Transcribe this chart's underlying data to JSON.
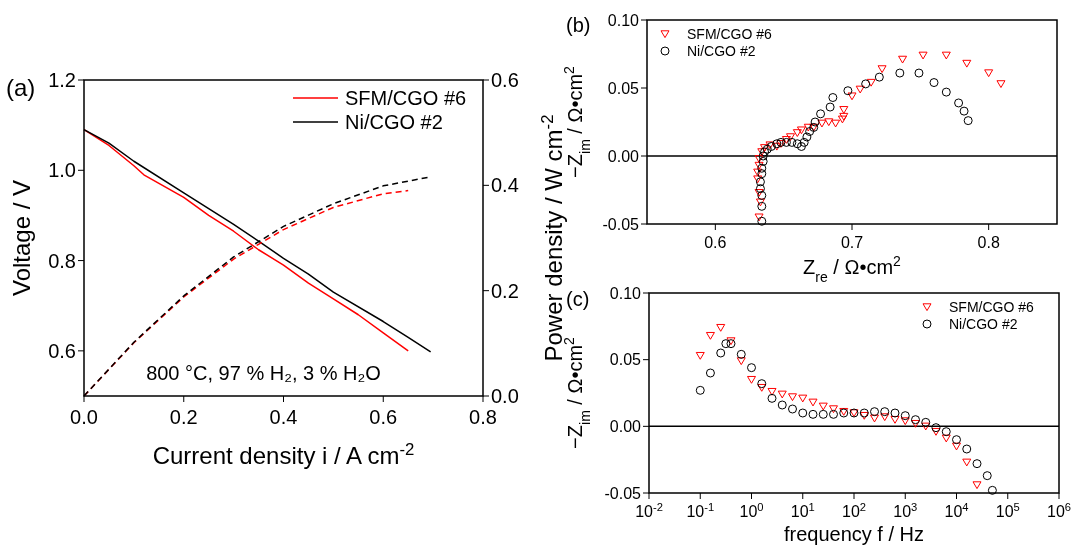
{
  "chart_data": [
    {
      "type": "line",
      "title": "(a)",
      "xlabel": "Current density i / A cm$^{-2}$",
      "ylabel": "Voltage / V",
      "y2label": "Power density / W cm$^{-2}$",
      "xlim": [
        0,
        0.8
      ],
      "ylim": [
        0.5,
        1.2
      ],
      "y2lim": [
        0,
        0.6
      ],
      "xticks": [
        {
          "value": 0,
          "label": "0.0"
        },
        0.2,
        0.4,
        0.6,
        0.8
      ],
      "yticks": [
        0.6,
        0.8,
        {
          "value": 1,
          "label": "1.0"
        },
        1.2
      ],
      "y2ticks": [
        {
          "value": 0,
          "label": "0.0"
        },
        0.2,
        0.4,
        0.6
      ],
      "legend": "top right",
      "annotations": [
        "800 °C, 97 % H₂, 3 % H₂O"
      ],
      "series": [
        {
          "name": "SFM/CGO #6",
          "color": "#ff0000",
          "line_style": "solid",
          "x": [
            0,
            0.05,
            0.1,
            0.12,
            0.2,
            0.25,
            0.3,
            0.35,
            0.4,
            0.45,
            0.5,
            0.55,
            0.6,
            0.65
          ],
          "values": [
            1.09,
            1.055,
            1.01,
            0.99,
            0.94,
            0.9,
            0.865,
            0.824,
            0.79,
            0.75,
            0.715,
            0.68,
            0.64,
            0.6
          ]
        },
        {
          "name": "Ni/CGO #2",
          "color": "#000000",
          "line_style": "solid",
          "x": [
            0,
            0.05,
            0.1,
            0.2,
            0.3,
            0.35,
            0.4,
            0.45,
            0.5,
            0.6,
            0.65,
            0.695
          ],
          "values": [
            1.09,
            1.06,
            1.02,
            0.95,
            0.88,
            0.843,
            0.805,
            0.77,
            0.73,
            0.665,
            0.63,
            0.598
          ]
        },
        {
          "color": "#ff0000",
          "line_style": "dashed",
          "axis": "y2",
          "x": [
            0,
            0.1,
            0.2,
            0.3,
            0.35,
            0.4,
            0.5,
            0.6,
            0.65
          ],
          "values": [
            0,
            0.101,
            0.188,
            0.26,
            0.288,
            0.316,
            0.358,
            0.384,
            0.39
          ]
        },
        {
          "color": "#000000",
          "line_style": "dashed",
          "axis": "y2",
          "x": [
            0,
            0.1,
            0.2,
            0.3,
            0.4,
            0.5,
            0.6,
            0.695
          ],
          "values": [
            0,
            0.102,
            0.19,
            0.264,
            0.322,
            0.365,
            0.399,
            0.416
          ]
        }
      ]
    },
    {
      "type": "scatter",
      "title": "(b)",
      "xlabel": "Z$_{re}$ / Ω•cm$^{2}$",
      "ylabel": "−Z$_{im}$ / Ω•cm$^{2}$",
      "xlim": [
        0.55,
        0.85
      ],
      "ylim": [
        -0.05,
        0.1
      ],
      "xticks": [
        0.6,
        0.7,
        0.8
      ],
      "yticks": [
        -0.05,
        {
          "value": 0,
          "label": "0.00"
        },
        0.05,
        {
          "value": 0.1,
          "label": "0.10"
        }
      ],
      "legend": "top left",
      "ref_lines": [
        {
          "axis": "y",
          "value": 0
        }
      ],
      "series": [
        {
          "name": "SFM/CGO #6",
          "color": "#ff0000",
          "marker": "triangle",
          "x": [
            0.632,
            0.633,
            0.632,
            0.631,
            0.631,
            0.632,
            0.632,
            0.634,
            0.636,
            0.64,
            0.645,
            0.648,
            0.652,
            0.655,
            0.66,
            0.663,
            0.668,
            0.672,
            0.678,
            0.683,
            0.688,
            0.693,
            0.694,
            0.694,
            0.7,
            0.706,
            0.714,
            0.722,
            0.737,
            0.752,
            0.769,
            0.784,
            0.8,
            0.809
          ],
          "values": [
            -0.045,
            -0.034,
            -0.027,
            -0.017,
            -0.012,
            -0.007,
            -0.002,
            0.003,
            0.006,
            0.008,
            0.007,
            0.009,
            0.012,
            0.014,
            0.017,
            0.019,
            0.021,
            0.021,
            0.024,
            0.025,
            0.024,
            0.027,
            0.029,
            0.034,
            0.044,
            0.049,
            0.054,
            0.064,
            0.071,
            0.074,
            0.074,
            0.068,
            0.061,
            0.053
          ]
        },
        {
          "name": "Ni/CGO #2",
          "color": "#000000",
          "marker": "circle",
          "x": [
            0.634,
            0.634,
            0.634,
            0.633,
            0.633,
            0.634,
            0.634,
            0.635,
            0.635,
            0.636,
            0.638,
            0.641,
            0.645,
            0.648,
            0.652,
            0.656,
            0.66,
            0.663,
            0.665,
            0.667,
            0.669,
            0.672,
            0.673,
            0.677,
            0.684,
            0.686,
            0.697,
            0.71,
            0.72,
            0.735,
            0.749,
            0.76,
            0.769,
            0.778,
            0.782,
            0.785
          ],
          "values": [
            -0.048,
            -0.037,
            -0.029,
            -0.024,
            -0.019,
            -0.013,
            -0.009,
            -0.004,
            0,
            0.003,
            0.005,
            0.007,
            0.009,
            0.01,
            0.01,
            0.01,
            0.009,
            0.007,
            0.01,
            0.014,
            0.018,
            0.021,
            0.025,
            0.031,
            0.036,
            0.043,
            0.048,
            0.053,
            0.058,
            0.061,
            0.061,
            0.054,
            0.047,
            0.039,
            0.033,
            0.026
          ]
        }
      ]
    },
    {
      "type": "scatter",
      "title": "(c)",
      "xlabel": "frequency f / Hz",
      "ylabel": "−Z$_{im}$ / Ω•cm$^{2}$",
      "log": "x",
      "xlim": [
        0.01,
        1000000
      ],
      "ylim": [
        -0.05,
        0.1
      ],
      "xticks": [
        {
          "value": 0.01,
          "label": "10$^{-2}$"
        },
        {
          "value": 0.1,
          "label": "10$^{-1}$"
        },
        {
          "value": 1,
          "label": "10$^{0}$"
        },
        {
          "value": 10,
          "label": "10$^{1}$"
        },
        {
          "value": 100,
          "label": "10$^{2}$"
        },
        {
          "value": 1000,
          "label": "10$^{3}$"
        },
        {
          "value": 10000,
          "label": "10$^{4}$"
        },
        {
          "value": 100000,
          "label": "10$^{5}$"
        },
        {
          "value": 1000000,
          "label": "10$^{6}$"
        }
      ],
      "yticks": [
        -0.05,
        {
          "value": 0,
          "label": "0.00"
        },
        0.05,
        {
          "value": 0.1,
          "label": "0.10"
        }
      ],
      "legend": "top right",
      "ref_lines": [
        {
          "axis": "y",
          "value": 0
        }
      ],
      "series": [
        {
          "name": "SFM/CGO #6",
          "color": "#ff0000",
          "marker": "triangle",
          "x": [
            0.1,
            0.158,
            0.251,
            0.398,
            0.631,
            1,
            1.585,
            2.512,
            3.981,
            6.31,
            10,
            15.85,
            25.12,
            39.81,
            63.1,
            100,
            158.5,
            251.2,
            398.1,
            631,
            1000,
            1585,
            2512,
            3981,
            6310,
            10000,
            15850,
            25120
          ],
          "values": [
            0.053,
            0.068,
            0.074,
            0.064,
            0.049,
            0.035,
            0.029,
            0.026,
            0.024,
            0.022,
            0.021,
            0.018,
            0.015,
            0.013,
            0.011,
            0.01,
            0.008,
            0.006,
            0.007,
            0.005,
            0.004,
            0.002,
            0,
            -0.004,
            -0.009,
            -0.015,
            -0.027,
            -0.044
          ]
        },
        {
          "name": "Ni/CGO #2",
          "color": "#000000",
          "marker": "circle",
          "x": [
            0.1,
            0.158,
            0.251,
            0.316,
            0.398,
            0.631,
            1,
            1.585,
            2.512,
            3.981,
            6.31,
            10,
            15.85,
            25.12,
            39.81,
            63.1,
            100,
            158.5,
            251.2,
            398.1,
            631,
            1000,
            1585,
            2512,
            3981,
            6310,
            10000,
            15850,
            25120,
            39810,
            50120
          ],
          "values": [
            0.027,
            0.04,
            0.055,
            0.062,
            0.062,
            0.054,
            0.044,
            0.032,
            0.021,
            0.016,
            0.013,
            0.01,
            0.009,
            0.009,
            0.009,
            0.01,
            0.01,
            0.01,
            0.011,
            0.011,
            0.01,
            0.008,
            0.005,
            0.003,
            -0.001,
            -0.004,
            -0.01,
            -0.017,
            -0.028,
            -0.037,
            -0.048
          ]
        }
      ]
    }
  ]
}
